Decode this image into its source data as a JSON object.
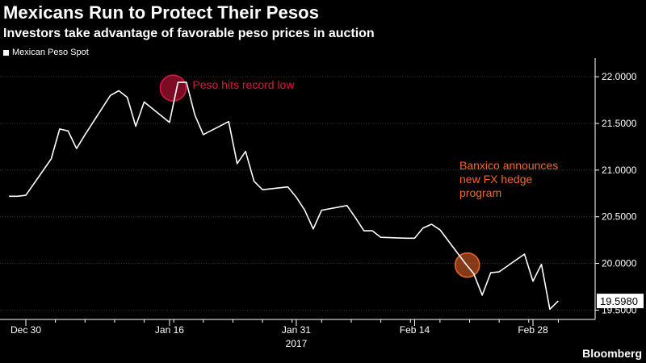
{
  "chart_data": {
    "type": "line",
    "title": "Mexicans Run to Protect Their Pesos",
    "subtitle": "Investors take advantage of favorable peso prices in auction",
    "series": [
      {
        "name": "Mexican Peso Spot",
        "x": [
          "2016-12-28",
          "2016-12-29",
          "2016-12-30",
          "2017-01-02",
          "2017-01-03",
          "2017-01-04",
          "2017-01-05",
          "2017-01-06",
          "2017-01-09",
          "2017-01-10",
          "2017-01-11",
          "2017-01-12",
          "2017-01-13",
          "2017-01-16",
          "2017-01-17",
          "2017-01-18",
          "2017-01-19",
          "2017-01-20",
          "2017-01-23",
          "2017-01-24",
          "2017-01-25",
          "2017-01-26",
          "2017-01-27",
          "2017-01-30",
          "2017-01-31",
          "2017-02-01",
          "2017-02-02",
          "2017-02-03",
          "2017-02-06",
          "2017-02-07",
          "2017-02-08",
          "2017-02-09",
          "2017-02-10",
          "2017-02-13",
          "2017-02-14",
          "2017-02-15",
          "2017-02-16",
          "2017-02-17",
          "2017-02-20",
          "2017-02-21",
          "2017-02-22",
          "2017-02-23",
          "2017-02-24",
          "2017-02-27",
          "2017-02-28",
          "2017-03-01",
          "2017-03-02",
          "2017-03-03"
        ],
        "values": [
          20.72,
          20.72,
          20.73,
          21.12,
          21.44,
          21.42,
          21.23,
          21.38,
          21.8,
          21.85,
          21.78,
          21.47,
          21.73,
          21.51,
          21.94,
          21.94,
          21.59,
          21.38,
          21.52,
          21.07,
          21.2,
          20.88,
          20.79,
          20.82,
          20.71,
          20.57,
          20.37,
          20.57,
          20.62,
          20.49,
          20.35,
          20.35,
          20.28,
          20.27,
          20.27,
          20.38,
          20.42,
          20.36,
          20.0,
          19.89,
          19.66,
          19.9,
          19.91,
          20.1,
          19.81,
          19.99,
          19.51,
          19.598
        ]
      }
    ],
    "xlabel": "",
    "ylabel": "",
    "x_ticks": [
      {
        "date": "2016-12-30",
        "label": "Dec 30"
      },
      {
        "date": "2017-01-16",
        "label": "Jan 16"
      },
      {
        "date": "2017-01-31",
        "label": "Jan 31"
      },
      {
        "date": "2017-02-14",
        "label": "Feb 14"
      },
      {
        "date": "2017-02-28",
        "label": "Feb 28"
      }
    ],
    "x_year_label": "2017",
    "y_ticks": [
      "19.5000",
      "20.0000",
      "20.5000",
      "21.0000",
      "21.5000",
      "22.0000"
    ],
    "ylim": [
      19.4,
      22.2
    ],
    "y_axis_side": "right",
    "last_value_label": "19.5980",
    "grid": true,
    "legend_position": "top-left",
    "annotations": [
      {
        "text": "Peso hits record low",
        "date": "2017-01-17",
        "value": 21.94,
        "color": "#e0153f"
      },
      {
        "text_lines": [
          "Banxico announces",
          "new FX hedge",
          "program"
        ],
        "date": "2017-02-21",
        "value": 20.0,
        "color": "#f0692b"
      }
    ]
  },
  "brand": "Bloomberg",
  "colors": {
    "background": "#000000",
    "line": "#ffffff",
    "grid": "#3a3a3a",
    "record_low": "#e0153f",
    "banxico": "#f0692b"
  }
}
